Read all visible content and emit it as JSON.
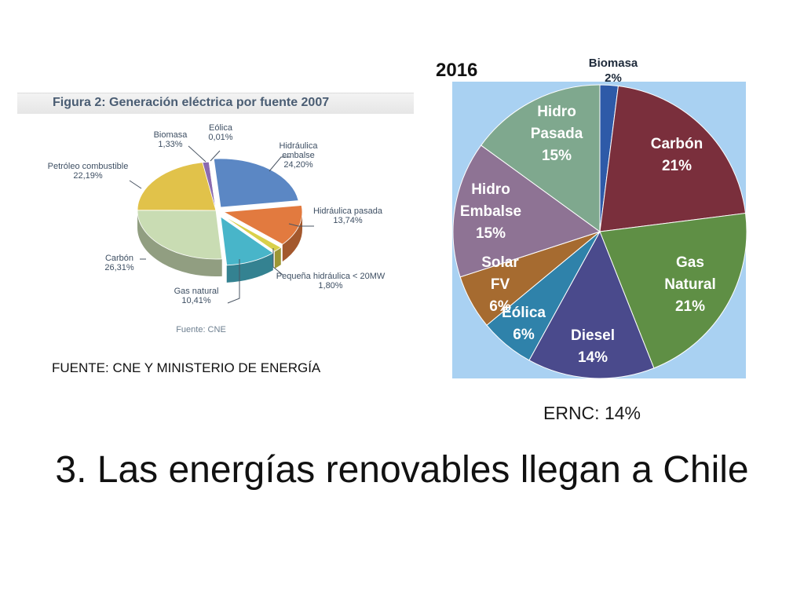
{
  "slide": {
    "title": "3. Las energías renovables llegan a Chile",
    "source_note": "FUENTE: CNE Y MINISTERIO DE ENERGÍA",
    "ernc_label": "ERNC: 14%"
  },
  "chart_data": [
    {
      "type": "pie",
      "title": "Figura 2: Generación eléctrica por fuente 2007",
      "source": "Fuente: CNE",
      "slices": [
        {
          "name": "Hidráulica embalse",
          "label": "Hidráulica\nembalse",
          "value_text": "24,20%",
          "value": 24.2,
          "color": "#5b87c4"
        },
        {
          "name": "Hidráulica pasada",
          "label": "Hidráulica pasada",
          "value_text": "13,74%",
          "value": 13.74,
          "color": "#e27a3f"
        },
        {
          "name": "Pequeña hidráulica < 20MW",
          "label": "Pequeña hidráulica < 20MW",
          "value_text": "1,80%",
          "value": 1.8,
          "color": "#d9d04a"
        },
        {
          "name": "Gas natural",
          "label": "Gas natural",
          "value_text": "10,41%",
          "value": 10.41,
          "color": "#48b5c9"
        },
        {
          "name": "Carbón",
          "label": "Carbón",
          "value_text": "26,31%",
          "value": 26.31,
          "color": "#c9dcb3"
        },
        {
          "name": "Petróleo combustible",
          "label": "Petróleo combustible",
          "value_text": "22,19%",
          "value": 22.19,
          "color": "#e1c24a"
        },
        {
          "name": "Biomasa",
          "label": "Biomasa",
          "value_text": "1,33%",
          "value": 1.33,
          "color": "#8b6bb0"
        },
        {
          "name": "Eólica",
          "label": "Eólica",
          "value_text": "0,01%",
          "value": 0.01,
          "color": "#7ab0d8"
        }
      ]
    },
    {
      "type": "pie",
      "title": "2016",
      "slices": [
        {
          "name": "Biomasa",
          "value_text": "2%",
          "value": 2,
          "color": "#2e5aa8"
        },
        {
          "name": "Carbón",
          "value_text": "21%",
          "value": 21,
          "color": "#7a2f3c"
        },
        {
          "name": "Gas Natural",
          "value_text": "21%",
          "value": 21,
          "color": "#5f8f45"
        },
        {
          "name": "Diesel",
          "value_text": "14%",
          "value": 14,
          "color": "#4a4a8c"
        },
        {
          "name": "Eólica",
          "value_text": "6%",
          "value": 6,
          "color": "#2f82aa"
        },
        {
          "name": "Solar FV",
          "value_text": "6%",
          "value": 6,
          "color": "#a66b30"
        },
        {
          "name": "Hidro Embalse",
          "value_text": "15%",
          "value": 15,
          "color": "#8e7394"
        },
        {
          "name": "Hidro Pasada",
          "value_text": "15%",
          "value": 15,
          "color": "#7fa88e"
        }
      ]
    }
  ]
}
